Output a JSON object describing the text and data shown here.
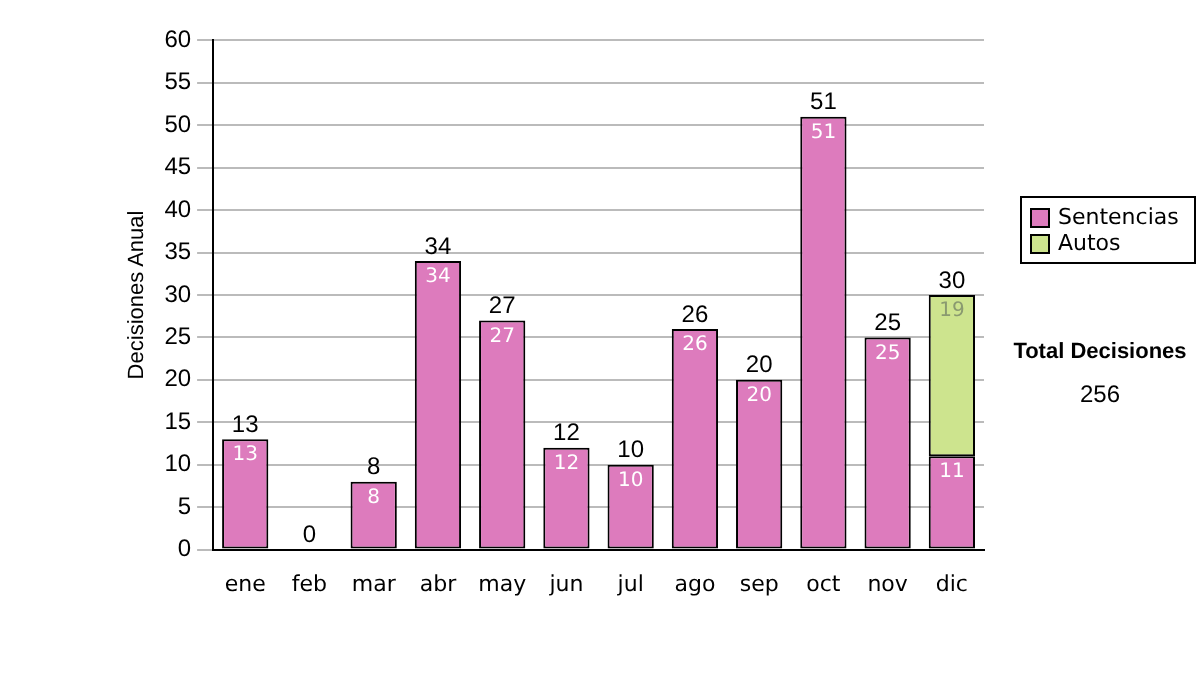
{
  "chart_data": {
    "type": "bar",
    "stacked": true,
    "ylabel": "Decisiones Anual",
    "categories": [
      "ene",
      "feb",
      "mar",
      "abr",
      "may",
      "jun",
      "jul",
      "ago",
      "sep",
      "oct",
      "nov",
      "dic"
    ],
    "series": [
      {
        "name": "Sentencias",
        "color": "#dd7bbd",
        "values": [
          13,
          0,
          8,
          34,
          27,
          12,
          10,
          26,
          20,
          51,
          25,
          11
        ],
        "value_labels": [
          "13",
          null,
          "8",
          "34",
          "27",
          "12",
          "10",
          "26",
          "20",
          "51",
          "25",
          "11"
        ]
      },
      {
        "name": "Autos",
        "color": "#cde48e",
        "values": [
          0,
          0,
          0,
          0,
          0,
          0,
          0,
          0,
          0,
          0,
          0,
          19
        ],
        "value_labels": [
          null,
          null,
          null,
          null,
          null,
          null,
          null,
          null,
          null,
          null,
          null,
          "19"
        ]
      }
    ],
    "totals": [
      "13",
      "0",
      "8",
      "34",
      "27",
      "12",
      "10",
      "26",
      "20",
      "51",
      "25",
      "30"
    ],
    "ylim": [
      0,
      60
    ],
    "yticks": [
      0,
      5,
      10,
      15,
      20,
      25,
      30,
      35,
      40,
      45,
      50,
      55,
      60
    ],
    "grid": "y",
    "legend": "right",
    "annotations": [
      "Total Decisiones",
      "256"
    ]
  }
}
